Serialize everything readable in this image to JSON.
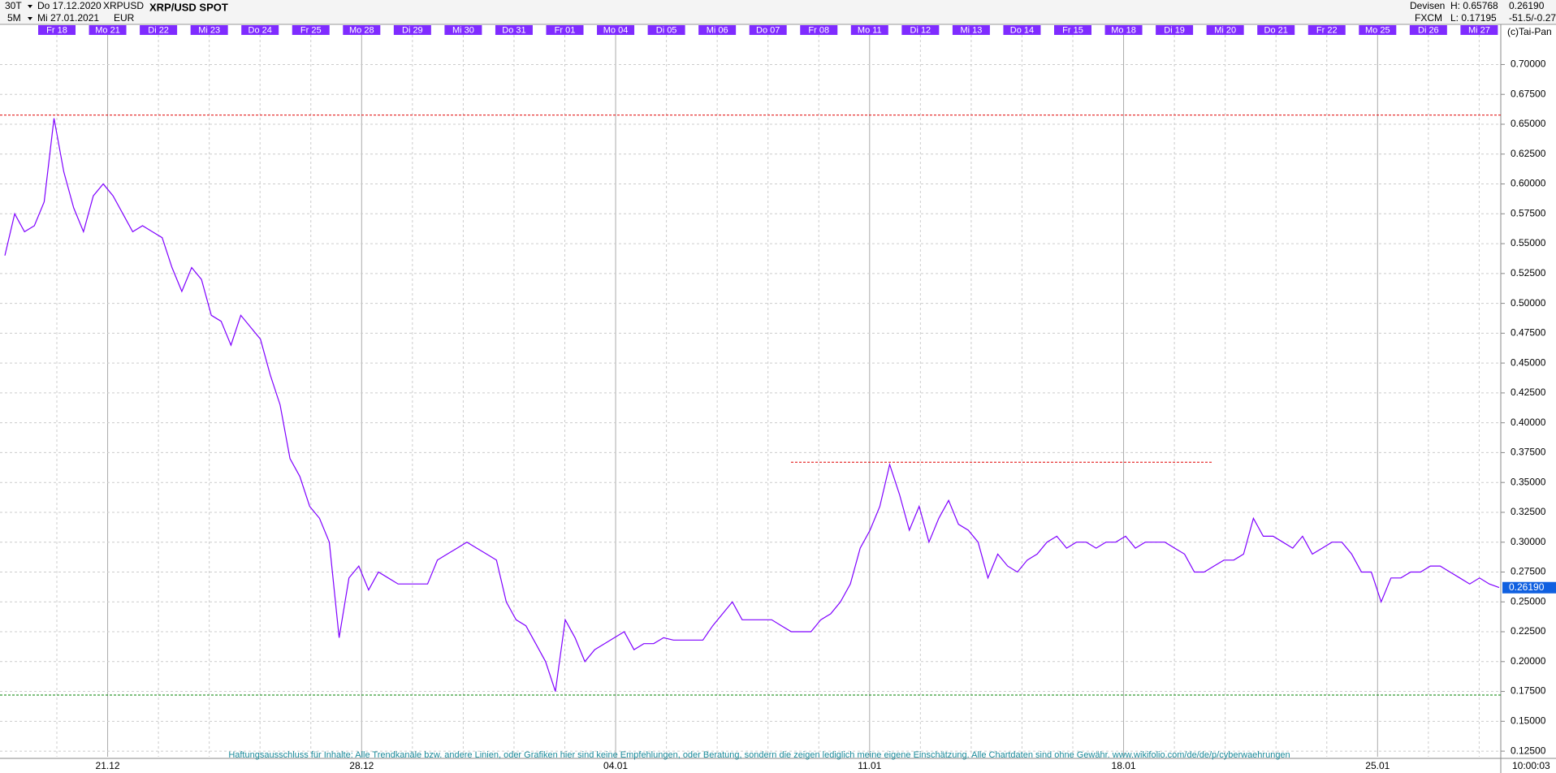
{
  "header": {
    "interval": "30T",
    "start_date": "Do 17.12.2020",
    "symbol": "XRPUSD",
    "title": "XRP/USD SPOT",
    "range": "5M",
    "end_date": "Mi 27.01.2021",
    "currency": "EUR",
    "market": "Devisen",
    "source": "FXCM",
    "high": "H: 0.65768",
    "low": "L: 0.17195",
    "last": "0.26190",
    "change": "-51.5/-0.27",
    "copyright": "(c)Tai-Pan"
  },
  "chart_data": {
    "type": "line",
    "title": "XRP/USD SPOT",
    "day_labels": [
      "Fr 18",
      "Mo 21",
      "Di 22",
      "Mi 23",
      "Do 24",
      "Fr 25",
      "Mo 28",
      "Di 29",
      "Mi 30",
      "Do 31",
      "Fr 01",
      "Mo 04",
      "Di 05",
      "Mi 06",
      "Do 07",
      "Fr 08",
      "Mo 11",
      "Di 12",
      "Mi 13",
      "Do 14",
      "Fr 15",
      "Mo 18",
      "Di 19",
      "Mi 20",
      "Do 21",
      "Fr 22",
      "Mo 25",
      "Di 26",
      "Mi 27"
    ],
    "week_labels": [
      "21.12",
      "28.12",
      "04.01",
      "11.01",
      "18.01",
      "25.01"
    ],
    "time_label": "10:00:03",
    "series": [
      {
        "name": "XRPUSD",
        "color": "#7f00ff",
        "values": [
          0.54,
          0.575,
          0.56,
          0.565,
          0.585,
          0.655,
          0.61,
          0.58,
          0.56,
          0.59,
          0.6,
          0.59,
          0.575,
          0.56,
          0.565,
          0.56,
          0.555,
          0.53,
          0.51,
          0.53,
          0.52,
          0.49,
          0.485,
          0.465,
          0.49,
          0.48,
          0.47,
          0.44,
          0.415,
          0.37,
          0.355,
          0.33,
          0.32,
          0.3,
          0.22,
          0.27,
          0.28,
          0.26,
          0.275,
          0.27,
          0.265,
          0.265,
          0.265,
          0.265,
          0.285,
          0.29,
          0.295,
          0.3,
          0.295,
          0.29,
          0.285,
          0.25,
          0.235,
          0.23,
          0.215,
          0.2,
          0.175,
          0.235,
          0.22,
          0.2,
          0.21,
          0.215,
          0.22,
          0.225,
          0.21,
          0.215,
          0.215,
          0.22,
          0.218,
          0.218,
          0.218,
          0.218,
          0.23,
          0.24,
          0.25,
          0.235,
          0.235,
          0.235,
          0.235,
          0.23,
          0.225,
          0.225,
          0.225,
          0.235,
          0.24,
          0.25,
          0.265,
          0.295,
          0.31,
          0.33,
          0.365,
          0.34,
          0.31,
          0.33,
          0.3,
          0.32,
          0.335,
          0.315,
          0.31,
          0.3,
          0.27,
          0.29,
          0.28,
          0.275,
          0.285,
          0.29,
          0.3,
          0.305,
          0.295,
          0.3,
          0.3,
          0.295,
          0.3,
          0.3,
          0.305,
          0.295,
          0.3,
          0.3,
          0.3,
          0.295,
          0.29,
          0.275,
          0.275,
          0.28,
          0.285,
          0.285,
          0.29,
          0.32,
          0.305,
          0.305,
          0.3,
          0.295,
          0.305,
          0.29,
          0.295,
          0.3,
          0.3,
          0.29,
          0.275,
          0.275,
          0.25,
          0.27,
          0.27,
          0.275,
          0.275,
          0.28,
          0.28,
          0.275,
          0.27,
          0.265,
          0.27,
          0.265,
          0.262
        ]
      }
    ],
    "hlines": [
      {
        "value": 0.65768,
        "color": "#e00000"
      },
      {
        "value": 0.17195,
        "color": "#008000"
      },
      {
        "value": 0.367,
        "color": "#e00000"
      }
    ],
    "last_price": {
      "value": 0.2619,
      "label": "0.26190",
      "color": "#1060e0"
    },
    "ylim": [
      0.1203,
      0.7248
    ],
    "yticks": [
      {
        "value": 0.125,
        "label": "0.12500"
      },
      {
        "value": 0.15,
        "label": "0.15000"
      },
      {
        "value": 0.175,
        "label": "0.17500"
      },
      {
        "value": 0.2,
        "label": "0.20000"
      },
      {
        "value": 0.225,
        "label": "0.22500"
      },
      {
        "value": 0.25,
        "label": "0.25000"
      },
      {
        "value": 0.275,
        "label": "0.27500"
      },
      {
        "value": 0.3,
        "label": "0.30000"
      },
      {
        "value": 0.325,
        "label": "0.32500"
      },
      {
        "value": 0.35,
        "label": "0.35000"
      },
      {
        "value": 0.375,
        "label": "0.37500"
      },
      {
        "value": 0.4,
        "label": "0.40000"
      },
      {
        "value": 0.425,
        "label": "0.42500"
      },
      {
        "value": 0.45,
        "label": "0.45000"
      },
      {
        "value": 0.475,
        "label": "0.47500"
      },
      {
        "value": 0.5,
        "label": "0.50000"
      },
      {
        "value": 0.525,
        "label": "0.52500"
      },
      {
        "value": 0.55,
        "label": "0.55000"
      },
      {
        "value": 0.575,
        "label": "0.57500"
      },
      {
        "value": 0.6,
        "label": "0.60000"
      },
      {
        "value": 0.625,
        "label": "0.62500"
      },
      {
        "value": 0.65,
        "label": "0.65000"
      },
      {
        "value": 0.675,
        "label": "0.67500"
      },
      {
        "value": 0.7,
        "label": "0.70000"
      }
    ],
    "grid": true,
    "disclaimer": "Haftungsausschluss für Inhalte: Alle Trendkanäle bzw. andere Linien, oder Grafiken hier sind keine Empfehlungen, oder Beratung, sondern die zeigen lediglich meine eigene Einschätzung. Alle Chartdaten sind ohne Gewähr.  www.wikifolio.com/de/de/p/cyberwaehrungen"
  }
}
